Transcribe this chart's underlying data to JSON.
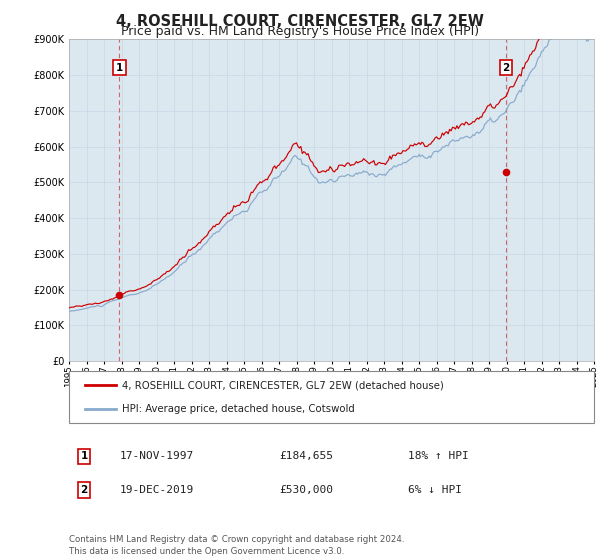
{
  "title": "4, ROSEHILL COURT, CIRENCESTER, GL7 2EW",
  "subtitle": "Price paid vs. HM Land Registry's House Price Index (HPI)",
  "legend_label_red": "4, ROSEHILL COURT, CIRENCESTER, GL7 2EW (detached house)",
  "legend_label_blue": "HPI: Average price, detached house, Cotswold",
  "purchase1_date": "17-NOV-1997",
  "purchase1_price": 184655,
  "purchase1_hpi": "18% ↑ HPI",
  "purchase2_date": "19-DEC-2019",
  "purchase2_price": 530000,
  "purchase2_hpi": "6% ↓ HPI",
  "xmin": 1995.0,
  "xmax": 2025.0,
  "ymin": 0,
  "ymax": 900000,
  "yticks": [
    0,
    100000,
    200000,
    300000,
    400000,
    500000,
    600000,
    700000,
    800000,
    900000
  ],
  "purchase1_x": 1997.88,
  "purchase2_x": 2019.96,
  "red_color": "#cc0000",
  "blue_color": "#88aacc",
  "grid_color": "#c8d8e8",
  "plot_bg_color": "#dce8f0",
  "dashed_line_color": "#cc4444",
  "box_edge_color": "#cc0000",
  "footer_text": "Contains HM Land Registry data © Crown copyright and database right 2024.\nThis data is licensed under the Open Government Licence v3.0.",
  "title_fontsize": 10.5,
  "subtitle_fontsize": 9.0
}
